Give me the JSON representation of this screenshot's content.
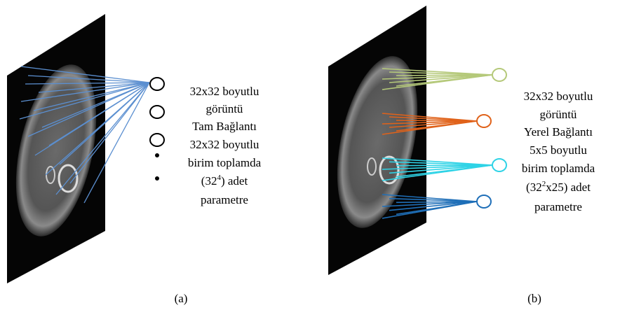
{
  "panel_a": {
    "lines": [
      "32x32 boyutlu",
      "görüntü",
      "Tam Bağlantı",
      "32x32 boyutlu",
      "birim toplamda"
    ],
    "param": {
      "before": "(32",
      "sup": "4",
      "after": ") adet"
    },
    "last": "parametre",
    "caption": "(a)"
  },
  "panel_b": {
    "lines": [
      "32x32 boyutlu",
      "görüntü",
      "Yerel Bağlantı",
      "5x5 boyutlu",
      "birim toplamda"
    ],
    "param": {
      "before": "(32",
      "sup": "2",
      "after": "x25) adet"
    },
    "last": "parametre",
    "caption": "(b)"
  }
}
